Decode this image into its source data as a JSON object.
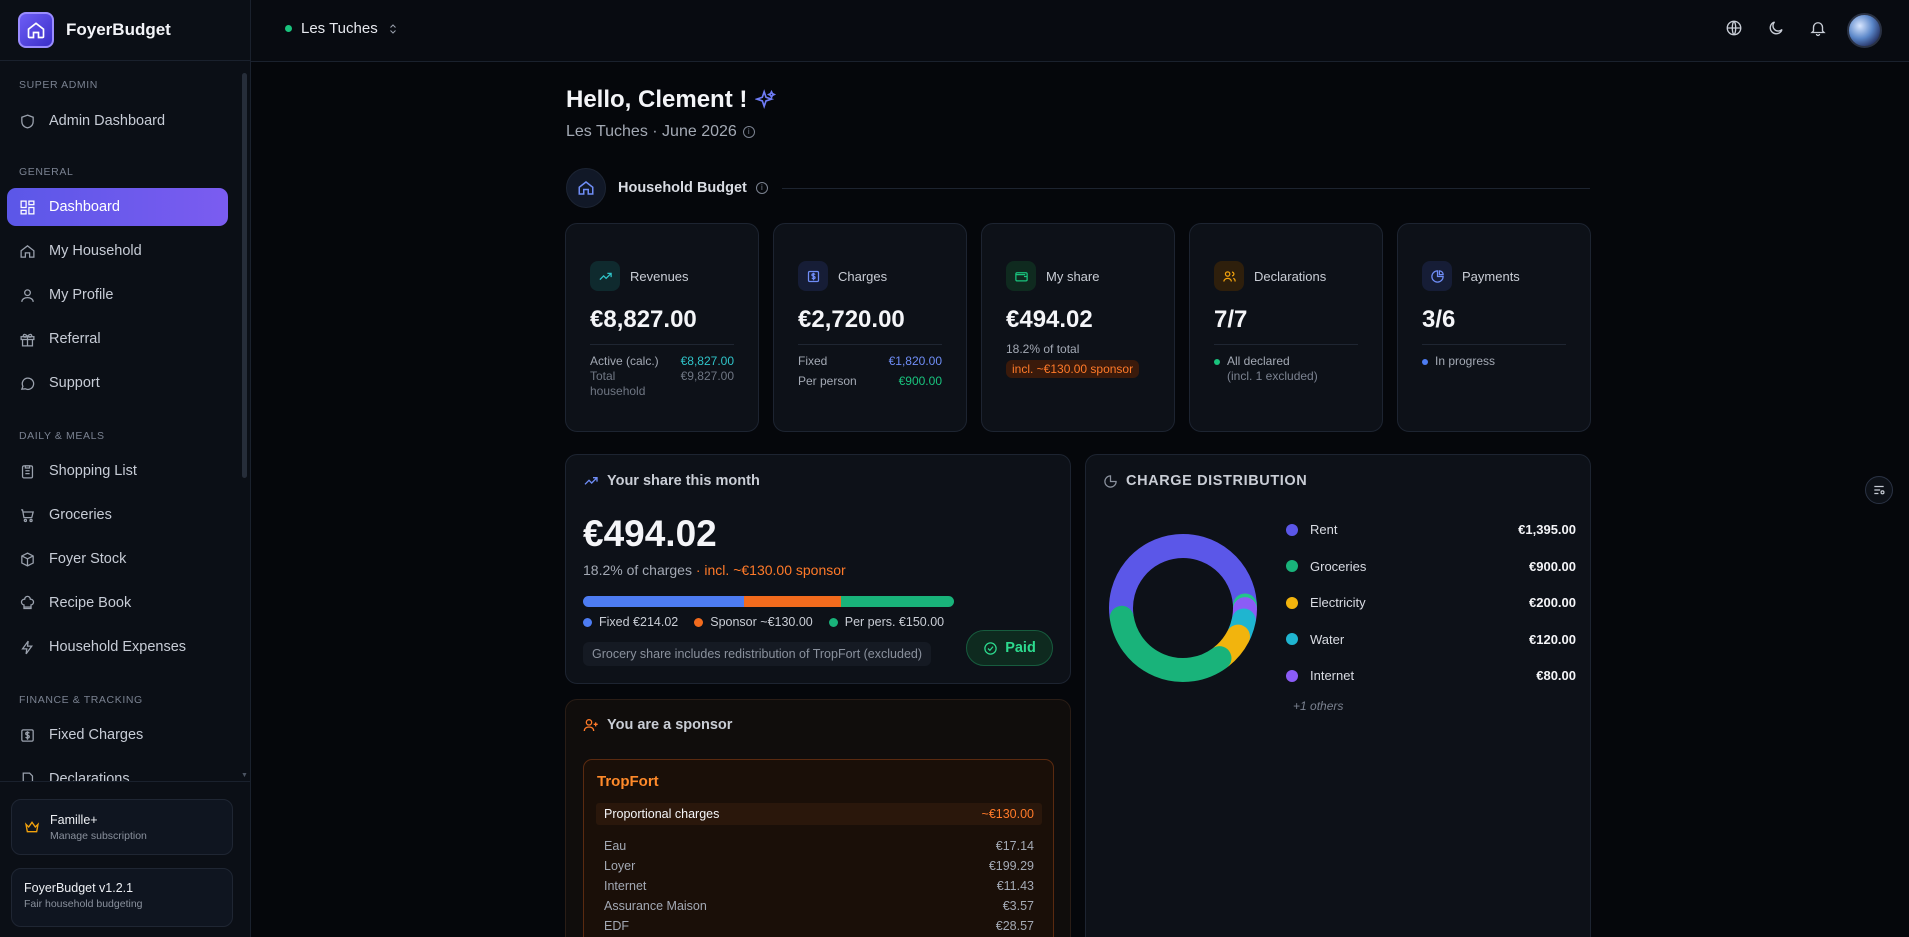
{
  "brand": {
    "name": "FoyerBudget"
  },
  "sidebar": {
    "sections": [
      "Super admin",
      "General",
      "Daily & Meals",
      "Finance & Tracking"
    ],
    "items": [
      {
        "label": "Admin Dashboard",
        "icon": "shield-icon"
      },
      {
        "label": "Dashboard",
        "icon": "grid-icon",
        "active": true
      },
      {
        "label": "My Household",
        "icon": "home-icon"
      },
      {
        "label": "My Profile",
        "icon": "user-icon"
      },
      {
        "label": "Referral",
        "icon": "gift-icon"
      },
      {
        "label": "Support",
        "icon": "chat-icon"
      },
      {
        "label": "Shopping List",
        "icon": "clipboard-icon"
      },
      {
        "label": "Groceries",
        "icon": "cart-icon"
      },
      {
        "label": "Foyer Stock",
        "icon": "box-icon"
      },
      {
        "label": "Recipe Book",
        "icon": "chef-hat-icon"
      },
      {
        "label": "Household Expenses",
        "icon": "bolt-icon"
      },
      {
        "label": "Fixed Charges",
        "icon": "dollar-icon"
      },
      {
        "label": "Declarations",
        "icon": "file-icon"
      }
    ],
    "plan": {
      "title": "Famille+",
      "subtitle": "Manage subscription"
    },
    "version": {
      "title": "FoyerBudget v1.2.1",
      "subtitle": "Fair household budgeting"
    }
  },
  "header": {
    "household": "Les Tuches"
  },
  "main": {
    "greeting": "Hello, Clement !",
    "subtitle": "Les Tuches · June 2026",
    "section_title": "Household Budget",
    "kpis": {
      "revenues": {
        "label": "Revenues",
        "value": "€8,827.00",
        "row1_label": "Active (calc.)",
        "row1_value": "€8,827.00",
        "row2_label": "Total household",
        "row2_value": "€9,827.00"
      },
      "charges": {
        "label": "Charges",
        "value": "€2,720.00",
        "row1_label": "Fixed",
        "row1_value": "€1,820.00",
        "row2_label": "Per person",
        "row2_value": "€900.00"
      },
      "myshare": {
        "label": "My share",
        "value": "€494.02",
        "note": "18.2% of total",
        "pill": "incl. ~€130.00 sponsor"
      },
      "declarations": {
        "label": "Declarations",
        "value": "7/7",
        "status": "All declared",
        "status_sub": "(incl. 1 excluded)"
      },
      "payments": {
        "label": "Payments",
        "value": "3/6",
        "status": "In progress"
      }
    },
    "share": {
      "title": "Your share this month",
      "amount": "€494.02",
      "pct": "18.2% of charges",
      "sponsor_part": " · incl. ~€130.00 sponsor",
      "bar": [
        {
          "value": 214.02,
          "color": "#4d7cf2"
        },
        {
          "value": 130.0,
          "color": "#f26b1d"
        },
        {
          "value": 150.0,
          "color": "#19b37a"
        }
      ],
      "legend": {
        "fixed": "Fixed €214.02",
        "sponsor": "Sponsor ~€130.00",
        "perpers": "Per pers. €150.00"
      },
      "note": "Grocery share includes redistribution of TropFort (excluded)",
      "paid_label": "Paid"
    },
    "distribution": {
      "title": "CHARGE DISTRIBUTION",
      "items": [
        {
          "label": "Rent",
          "value": "€1,395.00",
          "amount": 1395,
          "color": "#5b57e8"
        },
        {
          "label": "Groceries",
          "value": "€900.00",
          "amount": 900,
          "color": "#19b37a"
        },
        {
          "label": "Electricity",
          "value": "€200.00",
          "amount": 200,
          "color": "#f2b40d"
        },
        {
          "label": "Water",
          "value": "€120.00",
          "amount": 120,
          "color": "#1fb5d0"
        },
        {
          "label": "Internet",
          "value": "€80.00",
          "amount": 80,
          "color": "#8b5cf6"
        }
      ],
      "others": "+1 others",
      "others_amount": 25,
      "others_color": "#22c58b"
    },
    "sponsor": {
      "title": "You are a sponsor",
      "name": "TropFort",
      "prop_label": "Proportional charges",
      "prop_value": "~€130.00",
      "lines": [
        {
          "label": "Eau",
          "value": "€17.14"
        },
        {
          "label": "Loyer",
          "value": "€199.29"
        },
        {
          "label": "Internet",
          "value": "€11.43"
        },
        {
          "label": "Assurance Maison",
          "value": "€3.57"
        },
        {
          "label": "EDF",
          "value": "€28.57"
        }
      ]
    }
  }
}
